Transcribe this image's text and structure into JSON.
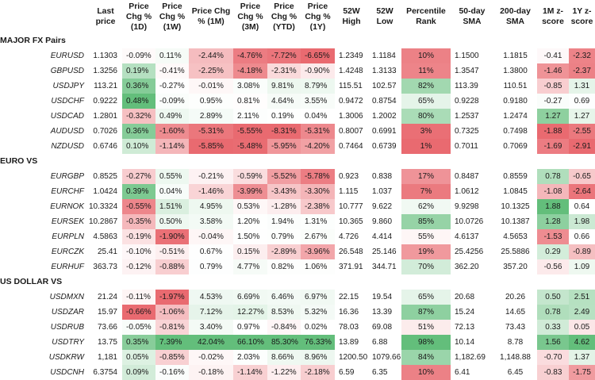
{
  "columns": [
    {
      "key": "last",
      "label": "Last\nprice",
      "color": false,
      "align": "right"
    },
    {
      "key": "d1",
      "label": "Price\nChg %\n(1D)",
      "color": true,
      "align": "left"
    },
    {
      "key": "w1",
      "label": "Price\nChg %\n(1W)",
      "color": true,
      "align": "left"
    },
    {
      "key": "m1",
      "label": "Price Chg\n% (1M)",
      "color": true,
      "align": "center"
    },
    {
      "key": "m3",
      "label": "Price\nChg %\n(3M)",
      "color": true,
      "align": "left"
    },
    {
      "key": "ytd",
      "label": "Price\nChg %\n(YTD)",
      "color": true,
      "align": "left"
    },
    {
      "key": "y1",
      "label": "Price\nChg %\n(1Y)",
      "color": true,
      "align": "left"
    },
    {
      "key": "h52",
      "label": "52W\nHigh",
      "color": false,
      "align": "left"
    },
    {
      "key": "l52",
      "label": "52W\nLow",
      "color": false,
      "align": "left"
    },
    {
      "key": "pct",
      "label": "Percentile\nRank",
      "color": true,
      "align": "center"
    },
    {
      "key": "sma50",
      "label": "50-day\nSMA",
      "color": false,
      "align": "left"
    },
    {
      "key": "sma200",
      "label": "200-day\nSMA",
      "color": false,
      "align": "center"
    },
    {
      "key": "z1m",
      "label": "1M z-\nscore",
      "color": true,
      "align": "center"
    },
    {
      "key": "z1y",
      "label": "1Y z-\nscore",
      "color": true,
      "align": "center"
    }
  ],
  "colors": {
    "green_strong": "#63be7b",
    "white": "#ffffff",
    "red_strong": "#e96a70"
  },
  "chart_data": {
    "type": "table",
    "groups": [
      {
        "title": "MAJOR FX Pairs",
        "rows": [
          {
            "pair": "EURUSD",
            "last": "1.1303",
            "d1": "-0.09%",
            "w1": "0.11%",
            "m1": "-2.44%",
            "m3": "-4.76%",
            "ytd": "-7.72%",
            "y1": "-6.65%",
            "h52": "1.2349",
            "l52": "1.1184",
            "pct": "10%",
            "sma50": "1.1500",
            "sma200": "1.1815",
            "z1m": "-0.41",
            "z1y": "-2.32"
          },
          {
            "pair": "GBPUSD",
            "last": "1.3256",
            "d1": "0.19%",
            "w1": "-0.41%",
            "m1": "-2.25%",
            "m3": "-4.18%",
            "ytd": "-2.31%",
            "y1": "-0.90%",
            "h52": "1.4248",
            "l52": "1.3133",
            "pct": "11%",
            "sma50": "1.3547",
            "sma200": "1.3800",
            "z1m": "-1.46",
            "z1y": "-2.37"
          },
          {
            "pair": "USDJPY",
            "last": "113.21",
            "d1": "0.36%",
            "w1": "-0.27%",
            "m1": "-0.01%",
            "m3": "3.08%",
            "ytd": "9.81%",
            "y1": "8.79%",
            "h52": "115.51",
            "l52": "102.57",
            "pct": "82%",
            "sma50": "113.39",
            "sma200": "110.51",
            "z1m": "-0.85",
            "z1y": "1.31"
          },
          {
            "pair": "USDCHF",
            "last": "0.9222",
            "d1": "0.48%",
            "w1": "-0.09%",
            "m1": "0.95%",
            "m3": "0.81%",
            "ytd": "4.64%",
            "y1": "3.55%",
            "h52": "0.9472",
            "l52": "0.8754",
            "pct": "65%",
            "sma50": "0.9228",
            "sma200": "0.9180",
            "z1m": "-0.27",
            "z1y": "0.69"
          },
          {
            "pair": "USDCAD",
            "last": "1.2801",
            "d1": "-0.32%",
            "w1": "0.49%",
            "m1": "2.89%",
            "m3": "2.11%",
            "ytd": "0.19%",
            "y1": "0.04%",
            "h52": "1.3006",
            "l52": "1.2002",
            "pct": "80%",
            "sma50": "1.2537",
            "sma200": "1.2474",
            "z1m": "1.27",
            "z1y": "1.27"
          },
          {
            "pair": "AUDUSD",
            "last": "0.7026",
            "d1": "0.36%",
            "w1": "-1.60%",
            "m1": "-5.31%",
            "m3": "-5.55%",
            "ytd": "-8.31%",
            "y1": "-5.31%",
            "h52": "0.8007",
            "l52": "0.6991",
            "pct": "3%",
            "sma50": "0.7325",
            "sma200": "0.7498",
            "z1m": "-1.88",
            "z1y": "-2.55"
          },
          {
            "pair": "NZDUSD",
            "last": "0.6746",
            "d1": "0.10%",
            "w1": "-1.14%",
            "m1": "-5.85%",
            "m3": "-5.48%",
            "ytd": "-5.95%",
            "y1": "-4.20%",
            "h52": "0.7464",
            "l52": "0.6739",
            "pct": "1%",
            "sma50": "0.7011",
            "sma200": "0.7069",
            "z1m": "-1.69",
            "z1y": "-2.91"
          }
        ]
      },
      {
        "title": "EURO VS",
        "rows": [
          {
            "pair": "EURGBP",
            "last": "0.8525",
            "d1": "-0.27%",
            "w1": "0.55%",
            "m1": "-0.21%",
            "m3": "-0.59%",
            "ytd": "-5.52%",
            "y1": "-5.78%",
            "h52": "0.923",
            "l52": "0.838",
            "pct": "17%",
            "sma50": "0.8487",
            "sma200": "0.8559",
            "z1m": "0.78",
            "z1y": "-0.65"
          },
          {
            "pair": "EURCHF",
            "last": "1.0424",
            "d1": "0.39%",
            "w1": "0.04%",
            "m1": "-1.46%",
            "m3": "-3.99%",
            "ytd": "-3.43%",
            "y1": "-3.30%",
            "h52": "1.115",
            "l52": "1.037",
            "pct": "7%",
            "sma50": "1.0612",
            "sma200": "1.0845",
            "z1m": "-1.08",
            "z1y": "-2.64"
          },
          {
            "pair": "EURNOK",
            "last": "10.3324",
            "d1": "-0.55%",
            "w1": "1.51%",
            "m1": "4.95%",
            "m3": "0.53%",
            "ytd": "-1.28%",
            "y1": "-2.38%",
            "h52": "10.777",
            "l52": "9.622",
            "pct": "62%",
            "sma50": "9.9298",
            "sma200": "10.1325",
            "z1m": "1.88",
            "z1y": "0.64"
          },
          {
            "pair": "EURSEK",
            "last": "10.2867",
            "d1": "-0.35%",
            "w1": "0.50%",
            "m1": "3.58%",
            "m3": "1.20%",
            "ytd": "1.94%",
            "y1": "1.31%",
            "h52": "10.365",
            "l52": "9.860",
            "pct": "85%",
            "sma50": "10.0726",
            "sma200": "10.1387",
            "z1m": "1.28",
            "z1y": "1.98"
          },
          {
            "pair": "EURPLN",
            "last": "4.5863",
            "d1": "-0.19%",
            "w1": "-1.90%",
            "m1": "-0.04%",
            "m3": "1.50%",
            "ytd": "0.79%",
            "y1": "2.67%",
            "h52": "4.726",
            "l52": "4.414",
            "pct": "55%",
            "sma50": "4.6137",
            "sma200": "4.5653",
            "z1m": "-1.53",
            "z1y": "0.66"
          },
          {
            "pair": "EURCZK",
            "last": "25.41",
            "d1": "-0.10%",
            "w1": "-0.51%",
            "m1": "0.67%",
            "m3": "0.15%",
            "ytd": "-2.89%",
            "y1": "-3.96%",
            "h52": "26.548",
            "l52": "25.146",
            "pct": "19%",
            "sma50": "25.4256",
            "sma200": "25.5886",
            "z1m": "0.29",
            "z1y": "-0.89"
          },
          {
            "pair": "EURHUF",
            "last": "363.73",
            "d1": "-0.12%",
            "w1": "-0.88%",
            "m1": "0.79%",
            "m3": "4.77%",
            "ytd": "0.82%",
            "y1": "1.06%",
            "h52": "371.91",
            "l52": "344.71",
            "pct": "70%",
            "sma50": "362.20",
            "sma200": "357.20",
            "z1m": "-0.56",
            "z1y": "1.09"
          }
        ]
      },
      {
        "title": "US DOLLAR VS",
        "rows": [
          {
            "pair": "USDMXN",
            "last": "21.24",
            "d1": "-0.11%",
            "w1": "-1.97%",
            "m1": "4.53%",
            "m3": "6.69%",
            "ytd": "6.46%",
            "y1": "6.97%",
            "h52": "22.15",
            "l52": "19.54",
            "pct": "65%",
            "sma50": "20.68",
            "sma200": "20.26",
            "z1m": "0.50",
            "z1y": "2.51"
          },
          {
            "pair": "USDZAR",
            "last": "15.97",
            "d1": "-0.66%",
            "w1": "-1.06%",
            "m1": "7.12%",
            "m3": "12.27%",
            "ytd": "8.53%",
            "y1": "5.32%",
            "h52": "16.36",
            "l52": "13.39",
            "pct": "87%",
            "sma50": "15.24",
            "sma200": "14.65",
            "z1m": "0.78",
            "z1y": "2.49"
          },
          {
            "pair": "USDRUB",
            "last": "73.66",
            "d1": "-0.05%",
            "w1": "-0.81%",
            "m1": "3.40%",
            "m3": "0.97%",
            "ytd": "-0.84%",
            "y1": "0.02%",
            "h52": "78.03",
            "l52": "69.08",
            "pct": "51%",
            "sma50": "72.13",
            "sma200": "73.43",
            "z1m": "0.33",
            "z1y": "0.05"
          },
          {
            "pair": "USDTRY",
            "last": "13.75",
            "d1": "0.35%",
            "w1": "7.39%",
            "m1": "42.04%",
            "m3": "66.10%",
            "ytd": "85.30%",
            "y1": "76.33%",
            "h52": "13.89",
            "l52": "6.88",
            "pct": "98%",
            "sma50": "10.14",
            "sma200": "8.78",
            "z1m": "1.56",
            "z1y": "4.62"
          },
          {
            "pair": "USDKRW",
            "last": "1,181",
            "d1": "0.05%",
            "w1": "-0.85%",
            "m1": "-0.02%",
            "m3": "2.03%",
            "ytd": "8.66%",
            "y1": "8.96%",
            "h52": "1200.50",
            "l52": "1079.66",
            "pct": "84%",
            "sma50": "1,182.69",
            "sma200": "1,148.88",
            "z1m": "-0.70",
            "z1y": "1.37"
          },
          {
            "pair": "USDCNH",
            "last": "6.3754",
            "d1": "0.09%",
            "w1": "-0.16%",
            "m1": "-0.18%",
            "m3": "-1.14%",
            "ytd": "-1.22%",
            "y1": "-2.18%",
            "h52": "6.59",
            "l52": "6.35",
            "pct": "10%",
            "sma50": "6.41",
            "sma200": "6.45",
            "z1m": "-0.83",
            "z1y": "-1.75"
          }
        ]
      }
    ]
  }
}
